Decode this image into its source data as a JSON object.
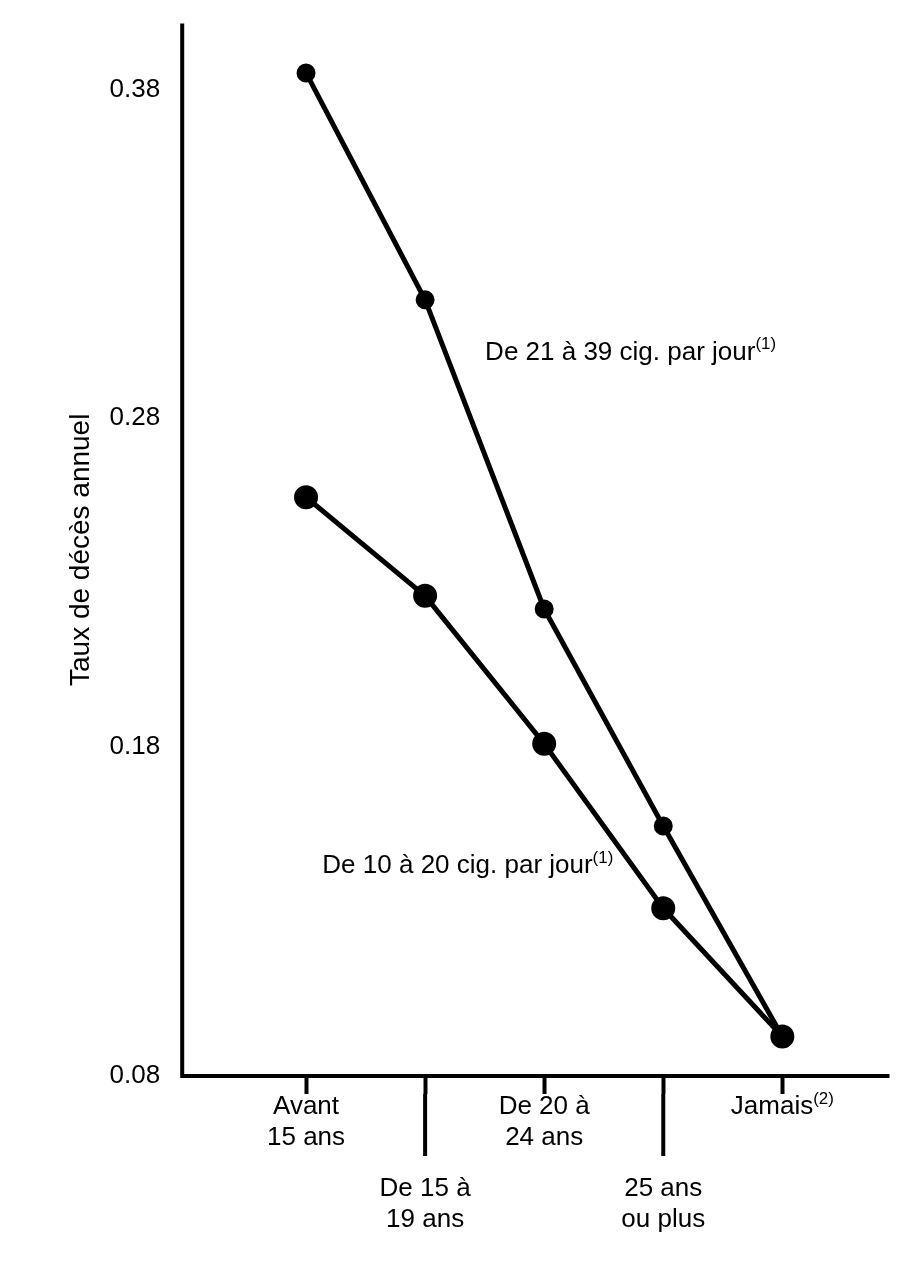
{
  "chart_data": {
    "type": "line",
    "ylabel": "Taux de décès annuel",
    "categories": [
      "Avant\n15 ans",
      "De 15 à\n19 ans",
      "De 20 à\n24 ans",
      "25 ans\nou plus",
      "Jamais$^{(2)}$"
    ],
    "series": [
      {
        "name": "De 21 à 39 cig. par jour$^{(1)}$",
        "color": "#000000",
        "values": [
          0.385,
          0.316,
          0.222,
          0.156,
          0.092
        ]
      },
      {
        "name": "De 10 à 20 cig. par jour$^{(1)}$",
        "color": "#000000",
        "values": [
          0.256,
          0.226,
          0.181,
          0.131,
          0.092
        ]
      }
    ],
    "ylim": [
      0.08,
      0.4
    ],
    "yticks": [
      0.08,
      0.18,
      0.28,
      0.38
    ],
    "grid": false,
    "legend": false,
    "marker": "circle",
    "line_style": "solid"
  }
}
